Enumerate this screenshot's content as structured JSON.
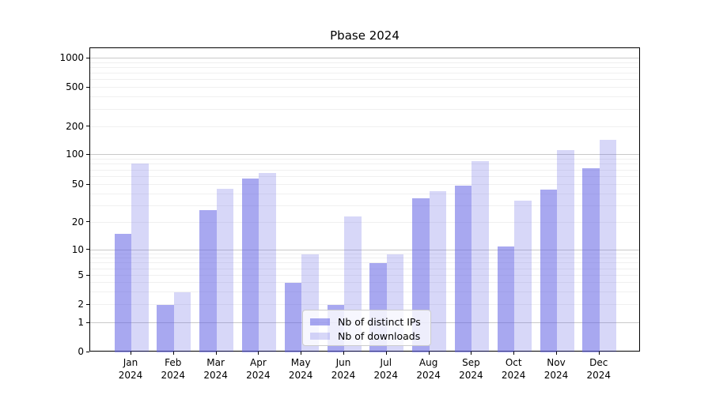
{
  "chart_data": {
    "type": "bar",
    "title": "Pbase 2024",
    "categories": [
      "Jan 2024",
      "Feb 2024",
      "Mar 2024",
      "Apr 2024",
      "May 2024",
      "Jun 2024",
      "Jul 2024",
      "Aug 2024",
      "Sep 2024",
      "Oct 2024",
      "Nov 2024",
      "Dec 2024"
    ],
    "series": [
      {
        "name": "Nb of distinct IPs",
        "color": "rgba(99,99,228,0.56)",
        "values": [
          15,
          2,
          27,
          58,
          4,
          2,
          7,
          36,
          49,
          11,
          45,
          74
        ]
      },
      {
        "name": "Nb of downloads",
        "color": "rgba(99,99,228,0.26)",
        "values": [
          82,
          3,
          46,
          66,
          9,
          23,
          9,
          43,
          87,
          34,
          112,
          146
        ]
      }
    ],
    "xlabel": "",
    "ylabel": "",
    "yscale": "symlog",
    "ylim": [
      0,
      1000
    ],
    "yticks": [
      0,
      1,
      2,
      5,
      10,
      20,
      50,
      100,
      200,
      500,
      1000
    ],
    "grid": true,
    "legend_position": "lower center"
  },
  "colors": {
    "grid_major": "#c9c9c9",
    "grid_minor": "#f0f0f0",
    "axis": "#000000",
    "legend_border": "#cccccc",
    "legend_background": "rgba(255,255,255,0.8)",
    "background": "#ffffff"
  }
}
